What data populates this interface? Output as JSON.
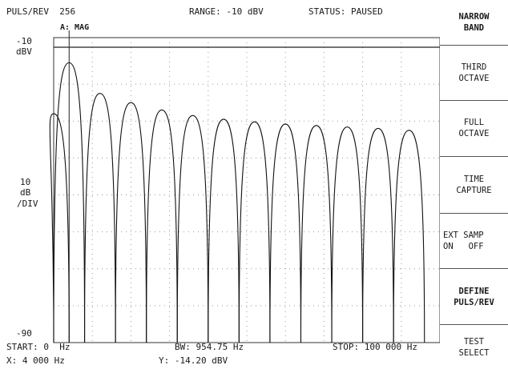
{
  "header": {
    "puls_rev": "PULS/REV  256",
    "range": "RANGE: -10 dBV",
    "status": "STATUS: PAUSED"
  },
  "trace_label": "A: MAG",
  "y_axis": {
    "top_value": "-10",
    "top_unit": "dBV",
    "scale_value": "10",
    "scale_unit": "dB",
    "scale_per": "/DIV",
    "bottom_value": "-90"
  },
  "footer": {
    "start": "START: 0  Hz",
    "bw": "BW: 954.75 Hz",
    "stop": "STOP: 100 000 Hz",
    "x_readout": "X: 4 000 Hz",
    "y_readout": "Y: -14.20 dBV"
  },
  "softkeys": [
    {
      "line1": "NARROW",
      "line2": "BAND",
      "bold": true
    },
    {
      "line1": "THIRD",
      "line2": "OCTAVE",
      "bold": false
    },
    {
      "line1": "FULL",
      "line2": "OCTAVE",
      "bold": false
    },
    {
      "line1": "TIME",
      "line2": "CAPTURE",
      "bold": false
    },
    {
      "line1": "EXT SAMP",
      "line2": "ON   OFF",
      "bold": false
    },
    {
      "line1": "DEFINE",
      "line2": "PULS/REV",
      "bold": true
    },
    {
      "line1": "TEST",
      "line2": "SELECT",
      "bold": false
    }
  ],
  "chart_data": {
    "type": "line",
    "x_range_hz": [
      0,
      100000
    ],
    "y_range_dbv": [
      -90,
      -10
    ],
    "y_scale_db_per_div": 10,
    "grid": true,
    "marker": {
      "x_hz": 4000,
      "y_dbv": -14.2
    },
    "series": [
      {
        "x": [
          0,
          4000,
          12000,
          20000,
          28000,
          36000,
          44000,
          52000,
          60000,
          68000,
          76000,
          84000,
          92000
        ],
        "y": [
          -28,
          -14.2,
          -22.5,
          -25,
          -27,
          -28.5,
          -29.5,
          -30.2,
          -30.8,
          -31.2,
          -31.6,
          -32,
          -32.5
        ]
      }
    ]
  }
}
